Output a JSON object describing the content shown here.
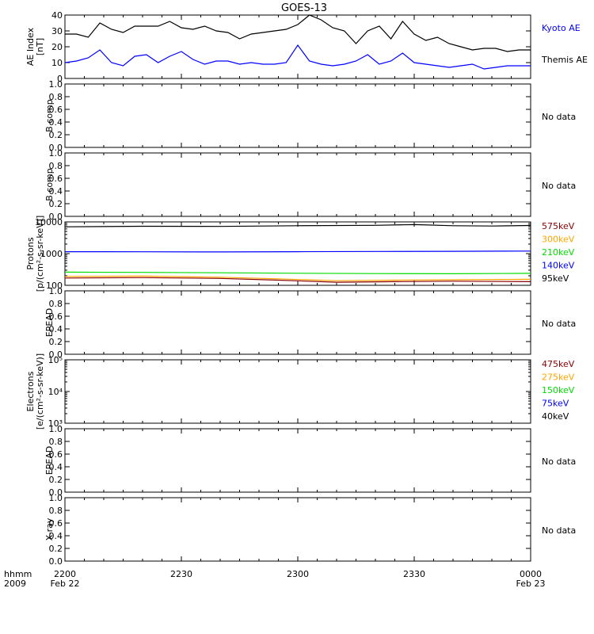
{
  "title": "GOES-13",
  "time_axis": {
    "row1_label": "hhmm",
    "row2_label": "2009",
    "ticks": [
      {
        "t": 0,
        "label": "2200",
        "sub": "Feb 22"
      },
      {
        "t": 30,
        "label": "2230",
        "sub": ""
      },
      {
        "t": 60,
        "label": "2300",
        "sub": ""
      },
      {
        "t": 90,
        "label": "2330",
        "sub": ""
      },
      {
        "t": 120,
        "label": "0000",
        "sub": "Feb 23"
      }
    ],
    "range_minutes": [
      0,
      120
    ]
  },
  "colors": {
    "black": "#000000",
    "blue": "#0000ff",
    "green": "#00dd00",
    "orange": "#ffa500",
    "red": "#8b0000"
  },
  "chart_data": [
    {
      "type": "line",
      "id": "ae",
      "ylabel": [
        "AE Index",
        "[nT]"
      ],
      "ylim": [
        0,
        40
      ],
      "yticks": [
        0,
        10,
        20,
        30,
        40
      ],
      "legend": [
        {
          "text": "Kyoto AE",
          "color": "#0000ff"
        },
        {
          "text": "Themis AE",
          "color": "#000000"
        }
      ],
      "series": [
        {
          "color": "#000000",
          "x": [
            0,
            3,
            6,
            9,
            12,
            15,
            18,
            21,
            24,
            27,
            30,
            33,
            36,
            39,
            42,
            45,
            48,
            51,
            54,
            57,
            60,
            63,
            66,
            69,
            72,
            75,
            78,
            81,
            84,
            87,
            90,
            93,
            96,
            99,
            102,
            105,
            108,
            111,
            114,
            117,
            120
          ],
          "y": [
            28,
            28,
            26,
            35,
            31,
            29,
            33,
            33,
            33,
            36,
            32,
            31,
            33,
            30,
            29,
            25,
            28,
            29,
            30,
            31,
            34,
            40,
            37,
            32,
            30,
            22,
            30,
            33,
            25,
            36,
            28,
            24,
            26,
            22,
            20,
            18,
            19,
            19,
            17,
            18,
            18
          ]
        },
        {
          "color": "#0000ff",
          "x": [
            0,
            3,
            6,
            9,
            12,
            15,
            18,
            21,
            24,
            27,
            30,
            33,
            36,
            39,
            42,
            45,
            48,
            51,
            54,
            57,
            60,
            63,
            66,
            69,
            72,
            75,
            78,
            81,
            84,
            87,
            90,
            93,
            96,
            99,
            102,
            105,
            108,
            111,
            114,
            117,
            120
          ],
          "y": [
            10,
            11,
            13,
            18,
            10,
            8,
            14,
            15,
            10,
            14,
            17,
            12,
            9,
            11,
            11,
            9,
            10,
            9,
            9,
            10,
            21,
            11,
            9,
            8,
            9,
            11,
            15,
            9,
            11,
            16,
            10,
            9,
            8,
            7,
            8,
            9,
            6,
            7,
            8,
            8,
            8
          ]
        }
      ]
    },
    {
      "type": "line",
      "id": "b1",
      "ylabel": [
        "B comp"
      ],
      "ylim": [
        0,
        1
      ],
      "yticks": [
        0.0,
        0.2,
        0.4,
        0.6,
        0.8,
        1.0
      ],
      "ytick_labels": [
        "0.0",
        "0.2",
        "0.4",
        "0.6",
        "0.8",
        "1.0"
      ],
      "note": "No data",
      "series": []
    },
    {
      "type": "line",
      "id": "b2",
      "ylabel": [
        "B comp"
      ],
      "ylim": [
        0,
        1
      ],
      "yticks": [
        0.0,
        0.2,
        0.4,
        0.6,
        0.8,
        1.0
      ],
      "ytick_labels": [
        "0.0",
        "0.2",
        "0.4",
        "0.6",
        "0.8",
        "1.0"
      ],
      "note": "No data",
      "series": []
    },
    {
      "type": "line",
      "id": "protons",
      "log": true,
      "ylabel": [
        "Protons",
        "[p/(cm²-s-sr-keV)]"
      ],
      "ylim": [
        100,
        10000
      ],
      "yticks": [
        100,
        1000,
        10000
      ],
      "ytick_labels": [
        "100",
        "1000",
        "10000"
      ],
      "legend": [
        {
          "text": "575keV",
          "color": "#8b0000"
        },
        {
          "text": "300keV",
          "color": "#ffa500"
        },
        {
          "text": "210keV",
          "color": "#00dd00"
        },
        {
          "text": "140keV",
          "color": "#0000ff"
        },
        {
          "text": "95keV",
          "color": "#000000"
        }
      ],
      "series": [
        {
          "color": "#000000",
          "x": [
            0,
            20,
            40,
            60,
            80,
            90,
            100,
            110,
            120
          ],
          "y": [
            7000,
            7300,
            7200,
            7600,
            7800,
            8200,
            7600,
            7400,
            7700
          ]
        },
        {
          "color": "#0000ff",
          "x": [
            0,
            20,
            40,
            60,
            80,
            100,
            120
          ],
          "y": [
            1150,
            1140,
            1130,
            1150,
            1170,
            1180,
            1200
          ]
        },
        {
          "color": "#00dd00",
          "x": [
            0,
            20,
            40,
            60,
            80,
            100,
            120
          ],
          "y": [
            260,
            255,
            248,
            240,
            235,
            232,
            238
          ]
        },
        {
          "color": "#ffa500",
          "x": [
            0,
            20,
            40,
            55,
            70,
            85,
            100,
            120
          ],
          "y": [
            190,
            195,
            180,
            160,
            140,
            145,
            150,
            155
          ]
        },
        {
          "color": "#8b0000",
          "x": [
            0,
            20,
            40,
            55,
            70,
            85,
            100,
            120
          ],
          "y": [
            170,
            175,
            165,
            145,
            125,
            130,
            135,
            130
          ]
        }
      ]
    },
    {
      "type": "line",
      "id": "epead1",
      "ylabel": [
        "EPEAD"
      ],
      "ylim": [
        0,
        1
      ],
      "yticks": [
        0.0,
        0.2,
        0.4,
        0.6,
        0.8,
        1.0
      ],
      "ytick_labels": [
        "0.0",
        "0.2",
        "0.4",
        "0.6",
        "0.8",
        "1.0"
      ],
      "note": "No data",
      "series": []
    },
    {
      "type": "line",
      "id": "electrons",
      "log": true,
      "ylabel": [
        "Electrons",
        "[e/(cm²-s-sr-keV)]"
      ],
      "ylim": [
        1000,
        100000
      ],
      "yticks": [
        1000,
        10000,
        100000
      ],
      "ytick_labels": [
        "10³",
        "10⁴",
        "10⁵"
      ],
      "legend": [
        {
          "text": "475keV",
          "color": "#8b0000"
        },
        {
          "text": "275keV",
          "color": "#ffa500"
        },
        {
          "text": "150keV",
          "color": "#00dd00"
        },
        {
          "text": "75keV",
          "color": "#0000ff"
        },
        {
          "text": "40keV",
          "color": "#000000"
        }
      ],
      "series": []
    },
    {
      "type": "line",
      "id": "epead2",
      "ylabel": [
        "EPEAD"
      ],
      "ylim": [
        0,
        1
      ],
      "yticks": [
        0.0,
        0.2,
        0.4,
        0.6,
        0.8,
        1.0
      ],
      "ytick_labels": [
        "0.0",
        "0.2",
        "0.4",
        "0.6",
        "0.8",
        "1.0"
      ],
      "note": "No data",
      "series": []
    },
    {
      "type": "line",
      "id": "xray",
      "ylabel": [
        "X-ray"
      ],
      "ylim": [
        0,
        1
      ],
      "yticks": [
        0.0,
        0.2,
        0.4,
        0.6,
        0.8,
        1.0
      ],
      "ytick_labels": [
        "0.0",
        "0.2",
        "0.4",
        "0.6",
        "0.8",
        "1.0"
      ],
      "note": "No data",
      "series": []
    }
  ]
}
